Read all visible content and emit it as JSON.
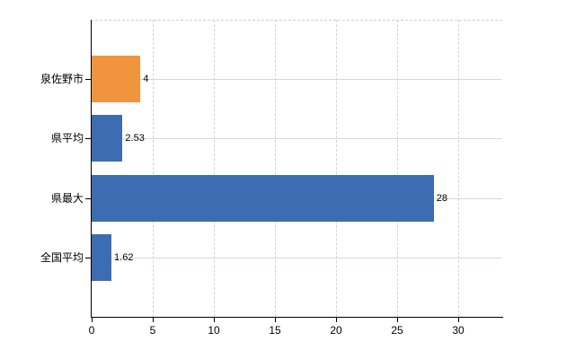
{
  "chart_data": {
    "type": "bar",
    "orientation": "horizontal",
    "title": "",
    "xlabel": "",
    "ylabel": "",
    "categories": [
      "泉佐野市",
      "県平均",
      "県最大",
      "全国平均"
    ],
    "values": [
      4,
      2.53,
      28,
      1.62
    ],
    "value_labels": [
      "4",
      "2.53",
      "28",
      "1.62"
    ],
    "x_ticks": [
      0,
      5,
      10,
      15,
      20,
      25,
      30
    ],
    "x_tick_labels": [
      "0",
      "5",
      "10",
      "15",
      "20",
      "25",
      "30"
    ],
    "xlim": [
      0,
      33.6
    ],
    "grid": true,
    "legend": false,
    "colors": {
      "bar_default": "#3c6db2",
      "bar_highlight": "#f0943e",
      "bar_colors": [
        "#f0943e",
        "#3c6db2",
        "#3c6db2",
        "#3c6db2"
      ],
      "axis": "#000000",
      "grid_vertical": "#d7d0d8",
      "grid_horizontal": "#d3dcd2",
      "text": "#000000",
      "background": "#ffffff"
    }
  }
}
